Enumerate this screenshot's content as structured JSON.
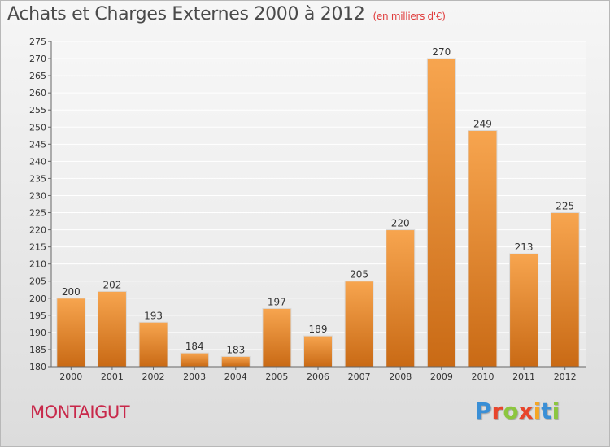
{
  "title": "Achats et Charges Externes 2000 à 2012",
  "unit": "(en milliers d'€)",
  "city": "MONTAIGUT",
  "brand": {
    "letters": [
      "P",
      "r",
      "o",
      "x",
      "i",
      "t",
      "i"
    ],
    "colors": [
      "#3a8fd6",
      "#e8452c",
      "#8cc63f",
      "#e8452c",
      "#f5a623",
      "#3a8fd6",
      "#8cc63f"
    ]
  },
  "colors": {
    "bar_light": "#f7a54f",
    "bar_dark": "#c96a15",
    "title": "#4a4a4a",
    "unit": "#e03c3c",
    "city": "#c8284a"
  },
  "chart_data": {
    "type": "bar",
    "categories": [
      "2000",
      "2001",
      "2002",
      "2003",
      "2004",
      "2005",
      "2006",
      "2007",
      "2008",
      "2009",
      "2010",
      "2011",
      "2012"
    ],
    "values": [
      200,
      202,
      193,
      184,
      183,
      197,
      189,
      205,
      220,
      270,
      249,
      213,
      225
    ],
    "title": "Achats et Charges Externes 2000 à 2012",
    "xlabel": "",
    "ylabel": "",
    "ylim": [
      180,
      275
    ],
    "yticks": [
      180,
      185,
      190,
      195,
      200,
      205,
      210,
      215,
      220,
      225,
      230,
      235,
      240,
      245,
      250,
      255,
      260,
      265,
      270,
      275
    ],
    "grid": true,
    "legend": "none"
  }
}
